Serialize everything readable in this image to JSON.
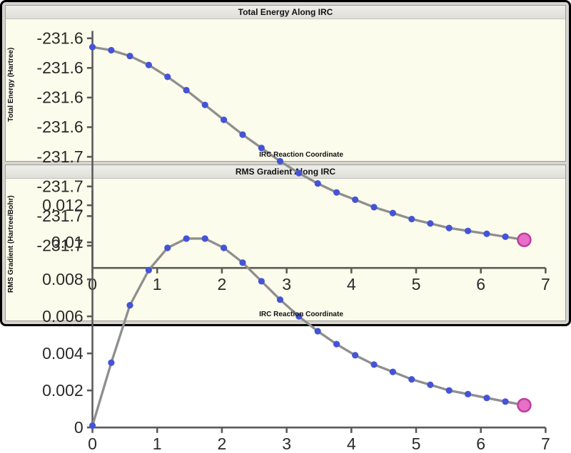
{
  "colors": {
    "frame_border": "#000000",
    "window_background": "#d7d4cf",
    "panel_background": "#fcfcec",
    "title_bar_background": "#e5e5e0",
    "axis": "#5a5a5a",
    "tick_text": "#2a2a2a",
    "line": "#8f8f8f",
    "marker": "#4553d7",
    "endpoint": "#e570c6",
    "endpoint_edge": "#c03d9e"
  },
  "chart_data": [
    {
      "type": "line",
      "title": "Total Energy Along IRC",
      "xlabel": "IRC Reaction Coordinate",
      "ylabel": "Total Energy (Hartree)",
      "grid": false,
      "legend": null,
      "xlim": [
        0,
        7
      ],
      "ylim": [
        -231.745,
        -231.585
      ],
      "xticks": {
        "values": [
          0,
          1,
          2,
          3,
          4,
          5,
          6,
          7
        ],
        "labels": [
          "0",
          "1",
          "2",
          "3",
          "4",
          "5",
          "6",
          "7"
        ]
      },
      "yticks": {
        "values": [
          -231.59,
          -231.61,
          -231.63,
          -231.65,
          -231.67,
          -231.69,
          -231.71,
          -231.73
        ],
        "labels": [
          "-231.6",
          "-231.6",
          "-231.6",
          "-231.6",
          "-231.7",
          "-231.7",
          "-231.7",
          "-231.7"
        ]
      },
      "x": [
        0.0,
        0.29,
        0.58,
        0.87,
        1.16,
        1.45,
        1.74,
        2.03,
        2.32,
        2.61,
        2.9,
        3.19,
        3.48,
        3.77,
        4.06,
        4.35,
        4.64,
        4.93,
        5.22,
        5.51,
        5.8,
        6.09,
        6.38,
        6.67
      ],
      "y": [
        -231.596,
        -231.598,
        -231.602,
        -231.608,
        -231.616,
        -231.625,
        -231.635,
        -231.645,
        -231.655,
        -231.664,
        -231.673,
        -231.681,
        -231.688,
        -231.694,
        -231.699,
        -231.704,
        -231.708,
        -231.712,
        -231.715,
        -231.718,
        -231.72,
        -231.722,
        -231.724,
        -231.726
      ]
    },
    {
      "type": "line",
      "title": "RMS Gradient Along IRC",
      "xlabel": "IRC Reaction Coordinate",
      "ylabel": "RMS Gradient (Hartree/Bohr)",
      "grid": false,
      "legend": null,
      "xlim": [
        0,
        7
      ],
      "ylim": [
        0,
        0.0128
      ],
      "xticks": {
        "values": [
          0,
          1,
          2,
          3,
          4,
          5,
          6,
          7
        ],
        "labels": [
          "0",
          "1",
          "2",
          "3",
          "4",
          "5",
          "6",
          "7"
        ]
      },
      "yticks": {
        "values": [
          0,
          0.002,
          0.004,
          0.006,
          0.008,
          0.01,
          0.012
        ],
        "labels": [
          "0",
          "0.002",
          "0.004",
          "0.006",
          "0.008",
          "0.01",
          "0.012"
        ]
      },
      "x": [
        0.0,
        0.29,
        0.58,
        0.87,
        1.16,
        1.45,
        1.74,
        2.03,
        2.32,
        2.61,
        2.9,
        3.19,
        3.48,
        3.77,
        4.06,
        4.35,
        4.64,
        4.93,
        5.22,
        5.51,
        5.8,
        6.09,
        6.38,
        6.67
      ],
      "y": [
        0.0001,
        0.0035,
        0.0066,
        0.0085,
        0.0097,
        0.0102,
        0.0102,
        0.0097,
        0.0089,
        0.0079,
        0.0069,
        0.006,
        0.0052,
        0.0045,
        0.0039,
        0.0034,
        0.003,
        0.0026,
        0.0023,
        0.002,
        0.0018,
        0.0016,
        0.0014,
        0.0012
      ]
    }
  ]
}
